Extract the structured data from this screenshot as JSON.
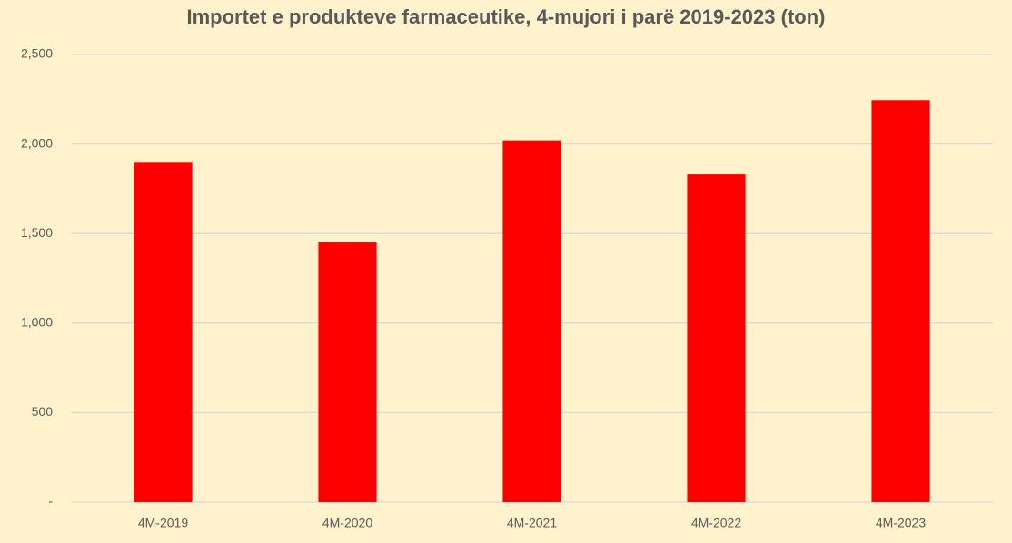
{
  "chart_data": {
    "type": "bar",
    "title": "Importet e produkteve farmaceutike, 4-mujori i parë 2019-2023 (ton)",
    "categories": [
      "4M-2019",
      "4M-2020",
      "4M-2021",
      "4M-2022",
      "4M-2023"
    ],
    "values": [
      1900,
      1450,
      2020,
      1830,
      2245
    ],
    "color": "#ff0000",
    "ylim": [
      0,
      2500
    ],
    "yticks": [
      {
        "value": 0,
        "label": "-"
      },
      500,
      {
        "value": 1000,
        "label": "1,000"
      },
      {
        "value": 1500,
        "label": "1,500"
      },
      {
        "value": 2000,
        "label": "2,000"
      },
      {
        "value": 2500,
        "label": "2,500"
      }
    ],
    "grid": true
  }
}
